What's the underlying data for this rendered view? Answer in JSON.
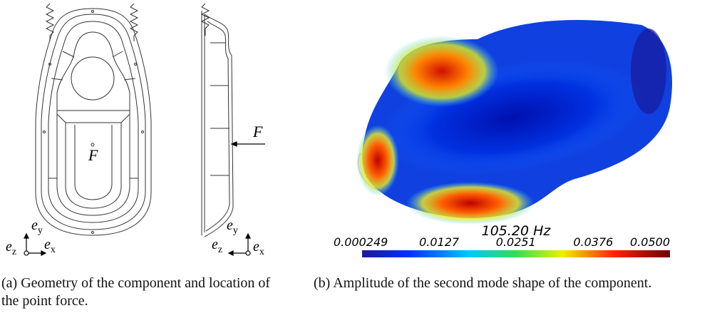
{
  "panel_a": {
    "top_view": {
      "force": "F",
      "axes": {
        "y": {
          "base": "e",
          "sub": "y"
        },
        "z": {
          "base": "e",
          "sub": "z"
        },
        "x": {
          "base": "e",
          "sub": "x"
        }
      }
    },
    "side_view": {
      "force": "F",
      "axes": {
        "y": {
          "base": "e",
          "sub": "y"
        },
        "z": {
          "base": "e",
          "sub": "z"
        },
        "x": {
          "base": "e",
          "sub": "x"
        }
      }
    },
    "caption": "(a) Geometry of the component and location of the point force."
  },
  "panel_b": {
    "colorbar": {
      "title": "105.20 Hz",
      "range": [
        0.000249,
        0.05
      ],
      "ticks": [
        0.000249,
        0.0127,
        0.0251,
        0.0376,
        {
          "value": 0.05,
          "label": "0.0500"
        }
      ]
    },
    "caption": "(b) Amplitude of the second mode shape of the component."
  }
}
